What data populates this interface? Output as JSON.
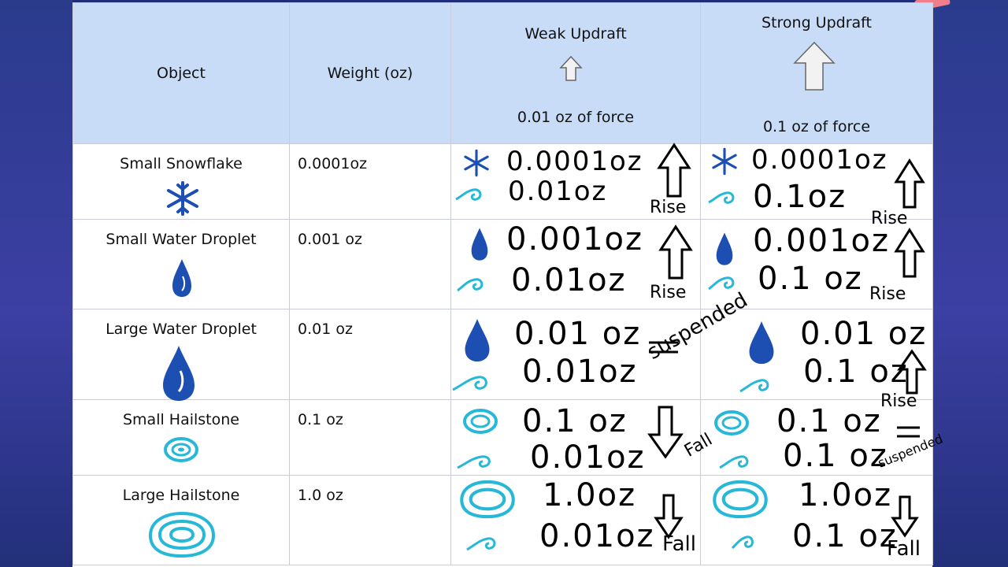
{
  "header": {
    "object": "Object",
    "weight": "Weight (oz)",
    "weak_updraft": "Weak Updraft",
    "weak_force": "0.01 oz of force",
    "strong_updraft": "Strong Updraft",
    "strong_force": "0.1 oz of force"
  },
  "rows": [
    {
      "object": "Small Snowflake",
      "weight": "0.0001oz",
      "weak_obj": "0.0001oz",
      "weak_force": "0.01oz",
      "weak_result": "Rise",
      "strong_obj": "0.0001oz",
      "strong_force": "0.1oz",
      "strong_result": "Rise"
    },
    {
      "object": "Small Water Droplet",
      "weight": "0.001 oz",
      "weak_obj": "0.001oz",
      "weak_force": "0.01oz",
      "weak_result": "Rise",
      "strong_obj": "0.001oz",
      "strong_force": "0.1 oz",
      "strong_result": "Rise"
    },
    {
      "object": "Large Water Droplet",
      "weight": "0.01 oz",
      "weak_obj": "0.01 oz",
      "weak_force": "0.01oz",
      "weak_result": "suspended",
      "strong_obj": "0.01 oz",
      "strong_force": "0.1 oz",
      "strong_result": "Rise"
    },
    {
      "object": "Small Hailstone",
      "weight": "0.1 oz",
      "weak_obj": "0.1 oz",
      "weak_force": "0.01oz",
      "weak_result": "Fall",
      "strong_obj": "0.1 oz",
      "strong_force": "0.1 oz",
      "strong_result": "suspended"
    },
    {
      "object": "Large Hailstone",
      "weight": "1.0 oz",
      "weak_obj": "1.0oz",
      "weak_force": "0.01oz",
      "weak_result": "Fall",
      "strong_obj": "1.0oz",
      "strong_force": "0.1 oz",
      "strong_result": "Fall"
    }
  ]
}
